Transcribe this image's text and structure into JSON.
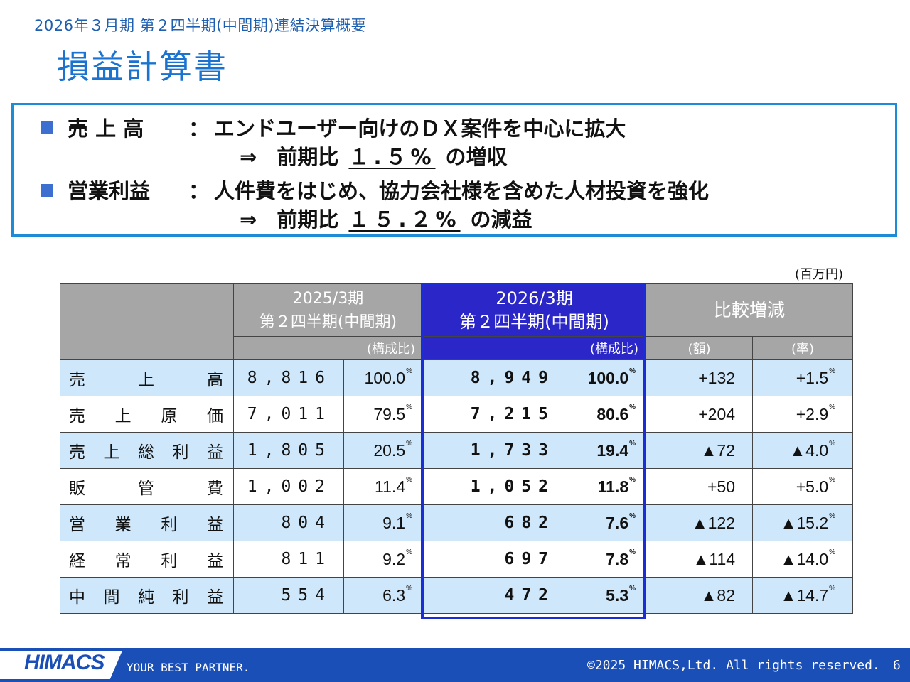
{
  "header": {
    "subtitle": "2026年３月期 第２四半期(中間期)連結決算概要",
    "title": "損益計算書"
  },
  "summary": [
    {
      "label": "売 上 高",
      "colon": "：",
      "line1": "エンドユーザー向けのＤＸ案件を中心に拡大",
      "arrow": "⇒",
      "prefix": "前期比",
      "pct": "１.５%",
      "suffix": "の増収"
    },
    {
      "label": "営業利益",
      "colon": "：",
      "line1": "人件費をはじめ、協力会社様を含めた人材投資を強化",
      "arrow": "⇒",
      "prefix": "前期比",
      "pct": "１５.２%",
      "suffix": "の減益"
    }
  ],
  "table": {
    "unit": "(百万円)",
    "headers": {
      "prev_line1": "2025/3期",
      "prev_line2": "第２四半期(中間期)",
      "prev_sub": "(構成比)",
      "cur_line1": "2026/3期",
      "cur_line2": "第２四半期(中間期)",
      "cur_sub": "(構成比)",
      "cmp": "比較増減",
      "cmp_amt": "(額)",
      "cmp_rate": "(率)"
    },
    "pct_mark": "%",
    "rows": [
      {
        "label": "売上高",
        "prev": "8,816",
        "prev_ratio": "100.0",
        "cur": "8,949",
        "cur_ratio": "100.0",
        "diff": "+132",
        "rate": "+1.5"
      },
      {
        "label": "売上原価",
        "prev": "7,011",
        "prev_ratio": "79.5",
        "cur": "7,215",
        "cur_ratio": "80.6",
        "diff": "+204",
        "rate": "+2.9"
      },
      {
        "label": "売上総利益",
        "prev": "1,805",
        "prev_ratio": "20.5",
        "cur": "1,733",
        "cur_ratio": "19.4",
        "diff": "▲72",
        "rate": "▲4.0"
      },
      {
        "label": "販管費",
        "prev": "1,002",
        "prev_ratio": "11.4",
        "cur": "1,052",
        "cur_ratio": "11.8",
        "diff": "+50",
        "rate": "+5.0"
      },
      {
        "label": "営業利益",
        "prev": "804",
        "prev_ratio": "9.1",
        "cur": "682",
        "cur_ratio": "7.6",
        "diff": "▲122",
        "rate": "▲15.2"
      },
      {
        "label": "経常利益",
        "prev": "811",
        "prev_ratio": "9.2",
        "cur": "697",
        "cur_ratio": "7.8",
        "diff": "▲114",
        "rate": "▲14.0"
      },
      {
        "label": "中間純利益",
        "prev": "554",
        "prev_ratio": "6.3",
        "cur": "472",
        "cur_ratio": "5.3",
        "diff": "▲82",
        "rate": "▲14.7"
      }
    ]
  },
  "footer": {
    "logo": "HIMACS",
    "tagline": "YOUR BEST PARTNER.",
    "copyright": "©2025 HIMACS,Ltd. All rights reserved.",
    "page": "6"
  },
  "colors": {
    "title": "#1a73d0",
    "box_border": "#1e8bd6",
    "header_gray": "#a6a6a6",
    "current_header": "#2a26c8",
    "row_stripe": "#cfe7fa",
    "footer": "#1b4fb8"
  }
}
